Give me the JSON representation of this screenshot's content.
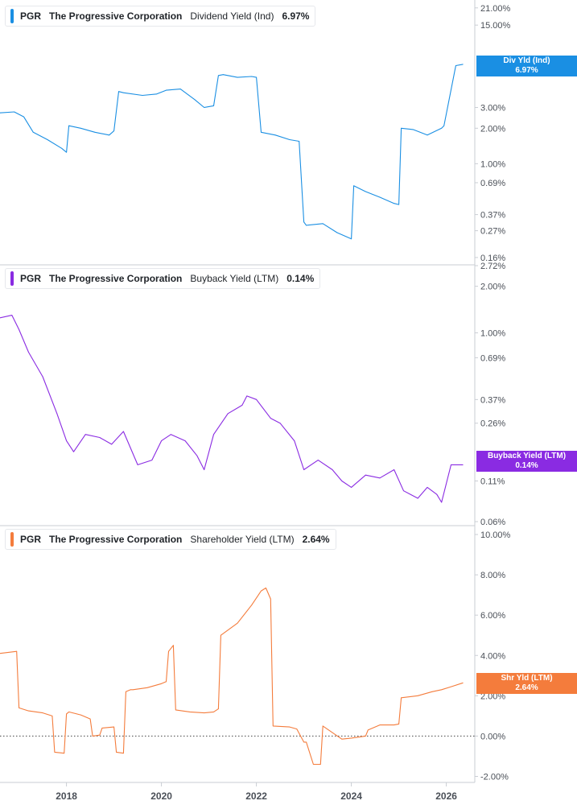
{
  "ticker": "PGR",
  "company": "The Progressive Corporation",
  "panels": [
    {
      "metric": "Dividend Yield (Ind)",
      "value": "6.97%",
      "tag_label": "Div Yld (Ind)",
      "tag_value": "6.97%",
      "color": "#1a8fe3"
    },
    {
      "metric": "Buyback Yield (LTM)",
      "value": "0.14%",
      "tag_label": "Buyback Yield (LTM)",
      "tag_value": "0.14%",
      "color": "#8a2be2"
    },
    {
      "metric": "Shareholder Yield (LTM)",
      "value": "2.64%",
      "tag_label": "Shr Yld (LTM)",
      "tag_value": "2.64%",
      "color": "#f47c3c"
    }
  ],
  "chart_data": [
    {
      "type": "line",
      "title": "PGR The Progressive Corporation Dividend Yield (Ind) 6.97%",
      "scale": "log",
      "ylim": [
        0.15,
        23.0
      ],
      "xlim": [
        2016.6,
        2026.6
      ],
      "y_ticks": [
        "21.00%",
        "15.00%",
        "3.00%",
        "2.00%",
        "1.00%",
        "0.69%",
        "0.37%",
        "0.27%",
        "0.16%"
      ],
      "series": [
        {
          "name": "Dividend Yield (Ind)",
          "x": [
            2016.6,
            2016.9,
            2017.1,
            2017.3,
            2017.6,
            2017.9,
            2018.0,
            2018.05,
            2018.3,
            2018.6,
            2018.9,
            2019.0,
            2019.1,
            2019.2,
            2019.6,
            2019.9,
            2020.1,
            2020.4,
            2020.7,
            2020.9,
            2021.1,
            2021.2,
            2021.3,
            2021.6,
            2021.9,
            2022.0,
            2022.1,
            2022.4,
            2022.7,
            2022.9,
            2023.0,
            2023.05,
            2023.4,
            2023.7,
            2024.0,
            2024.05,
            2024.3,
            2024.6,
            2024.9,
            2025.0,
            2025.05,
            2025.3,
            2025.6,
            2025.9,
            2025.95,
            2026.2,
            2026.35
          ],
          "y": [
            2.7,
            2.75,
            2.5,
            1.85,
            1.6,
            1.35,
            1.25,
            2.1,
            2.0,
            1.85,
            1.75,
            1.9,
            4.1,
            4.0,
            3.8,
            3.9,
            4.2,
            4.3,
            3.5,
            3.0,
            3.1,
            5.6,
            5.7,
            5.4,
            5.5,
            5.4,
            1.85,
            1.75,
            1.6,
            1.55,
            0.32,
            0.3,
            0.31,
            0.26,
            0.23,
            0.65,
            0.58,
            0.52,
            0.46,
            0.45,
            2.0,
            1.95,
            1.75,
            2.0,
            2.1,
            6.8,
            6.97
          ]
        }
      ]
    },
    {
      "type": "line",
      "title": "PGR The Progressive Corporation Buyback Yield (LTM) 0.14%",
      "scale": "log",
      "ylim": [
        0.06,
        2.72
      ],
      "xlim": [
        2016.6,
        2026.6
      ],
      "y_ticks": [
        "2.72%",
        "2.00%",
        "1.00%",
        "0.69%",
        "0.37%",
        "0.26%",
        "0.11%",
        "0.06%"
      ],
      "series": [
        {
          "name": "Buyback Yield (LTM)",
          "x": [
            2016.6,
            2016.85,
            2017.0,
            2017.2,
            2017.5,
            2017.8,
            2018.0,
            2018.15,
            2018.4,
            2018.7,
            2018.95,
            2019.2,
            2019.5,
            2019.8,
            2020.0,
            2020.2,
            2020.5,
            2020.75,
            2020.9,
            2021.1,
            2021.4,
            2021.7,
            2021.8,
            2022.0,
            2022.3,
            2022.5,
            2022.8,
            2023.0,
            2023.3,
            2023.6,
            2023.8,
            2024.0,
            2024.3,
            2024.6,
            2024.9,
            2025.1,
            2025.4,
            2025.6,
            2025.8,
            2025.9,
            2026.1,
            2026.35
          ],
          "y": [
            1.25,
            1.3,
            1.05,
            0.75,
            0.52,
            0.3,
            0.2,
            0.17,
            0.22,
            0.21,
            0.19,
            0.23,
            0.14,
            0.15,
            0.2,
            0.22,
            0.2,
            0.16,
            0.13,
            0.22,
            0.3,
            0.34,
            0.39,
            0.37,
            0.28,
            0.26,
            0.2,
            0.13,
            0.15,
            0.13,
            0.11,
            0.1,
            0.12,
            0.115,
            0.13,
            0.095,
            0.085,
            0.1,
            0.09,
            0.08,
            0.14,
            0.14
          ]
        }
      ]
    },
    {
      "type": "line",
      "title": "PGR The Progressive Corporation Shareholder Yield (LTM) 2.64%",
      "scale": "linear",
      "ylim": [
        -2.3,
        10.4
      ],
      "xlim": [
        2016.6,
        2026.6
      ],
      "y_ticks": [
        "10.00%",
        "8.00%",
        "6.00%",
        "4.00%",
        "2.00%",
        "0.00%",
        "-2.00%"
      ],
      "series": [
        {
          "name": "Shareholder Yield (LTM)",
          "x": [
            2016.6,
            2016.95,
            2017.0,
            2017.2,
            2017.5,
            2017.7,
            2017.75,
            2017.95,
            2018.0,
            2018.05,
            2018.3,
            2018.5,
            2018.55,
            2018.7,
            2018.75,
            2019.0,
            2019.05,
            2019.2,
            2019.25,
            2019.35,
            2019.4,
            2019.7,
            2020.0,
            2020.1,
            2020.15,
            2020.25,
            2020.3,
            2020.6,
            2020.9,
            2021.1,
            2021.2,
            2021.25,
            2021.6,
            2021.9,
            2022.1,
            2022.2,
            2022.3,
            2022.35,
            2022.7,
            2022.85,
            2023.0,
            2023.05,
            2023.2,
            2023.35,
            2023.4,
            2023.8,
            2024.0,
            2024.3,
            2024.35,
            2024.6,
            2024.9,
            2025.0,
            2025.05,
            2025.4,
            2025.7,
            2025.9,
            2026.1,
            2026.35
          ],
          "y": [
            4.1,
            4.2,
            1.4,
            1.25,
            1.15,
            1.0,
            -0.8,
            -0.85,
            1.1,
            1.2,
            1.05,
            0.85,
            0.0,
            0.05,
            0.4,
            0.45,
            -0.8,
            -0.85,
            2.2,
            2.3,
            2.3,
            2.4,
            2.6,
            2.7,
            4.2,
            4.5,
            1.3,
            1.2,
            1.15,
            1.2,
            1.35,
            5.0,
            5.6,
            6.5,
            7.2,
            7.35,
            6.8,
            0.5,
            0.45,
            0.35,
            -0.3,
            -0.3,
            -1.4,
            -1.4,
            0.5,
            -0.15,
            -0.1,
            0.0,
            0.3,
            0.55,
            0.55,
            0.6,
            1.9,
            2.0,
            2.2,
            2.3,
            2.45,
            2.64
          ]
        }
      ]
    }
  ],
  "x_axis": {
    "ticks": [
      "2018",
      "2020",
      "2022",
      "2024",
      "2026"
    ],
    "values": [
      2018,
      2020,
      2022,
      2024,
      2026
    ]
  }
}
